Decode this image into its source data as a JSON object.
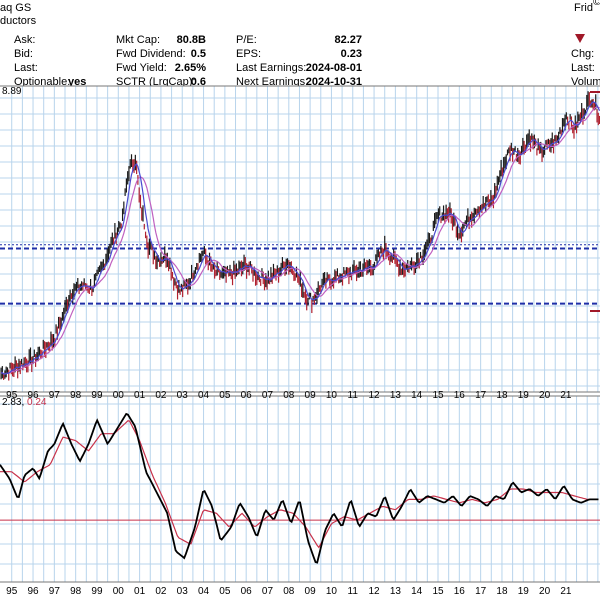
{
  "header": {
    "exchange": "aq GS",
    "industry": "ductors",
    "date_fragment": "Frid",
    "corner_fragment": "©",
    "fields": {
      "ask_label": "Ask:",
      "ask_value": "",
      "bid_label": "Bid:",
      "bid_value": "",
      "last_label": "Last:",
      "last_value": "",
      "optionable_label": "Optionable:",
      "optionable_value": "yes",
      "mktcap_label": "Mkt Cap:",
      "mktcap_value": "80.8B",
      "fwddiv_label": "Fwd Dividend:",
      "fwddiv_value": "0.5",
      "fwdyield_label": "Fwd Yield:",
      "fwdyield_value": "2.65%",
      "sctr_label": "SCTR (LrgCap):",
      "sctr_value": "0.6",
      "pe_label": "P/E:",
      "pe_value": "82.27",
      "eps_label": "EPS:",
      "eps_value": "0.23",
      "lastearn_label": "Last Earnings:",
      "lastearn_value": "2024-08-01",
      "nextearn_label": "Next Earnings:",
      "nextearn_value": "2024-10-31",
      "chg_label": "Chg:",
      "last2_label": "Last:",
      "volume_label": "Volume"
    }
  },
  "colors": {
    "grid": "#b8d4ec",
    "price": "#000000",
    "price_up": "#1a1a1a",
    "price_down": "#b0202e",
    "ma_fast": "#4a4ad0",
    "ma_slow": "#c060c0",
    "support": "#1f2fa8",
    "macd": "#000000",
    "signal": "#c8324a",
    "zero": "#c8324a",
    "triangle": "#a01828"
  },
  "chart_data": [
    {
      "type": "line",
      "panel": "price",
      "price_label_fragment": "8.89",
      "x_tick_labels": [
        "95",
        "96",
        "97",
        "98",
        "99",
        "00",
        "01",
        "02",
        "03",
        "04",
        "05",
        "06",
        "07",
        "08",
        "09",
        "10",
        "11",
        "12",
        "13",
        "14",
        "15",
        "16",
        "17",
        "18",
        "19",
        "20",
        "21"
      ],
      "x_year_start": 1994.45,
      "x_year_end": 2022.6,
      "y_log_range": [
        3.5,
        95
      ],
      "support_lines": [
        {
          "value": 16.8,
          "style": "dashed-bold"
        },
        {
          "value": 17.5,
          "style": "dotted-thin"
        },
        {
          "value": 9.2,
          "style": "dashed-bold"
        }
      ],
      "series": [
        {
          "values_by_year": [
            [
              1994.5,
              4.3
            ],
            [
              1995.0,
              4.5
            ],
            [
              1995.5,
              4.8
            ],
            [
              1996.0,
              5.0
            ],
            [
              1996.5,
              5.6
            ],
            [
              1997.0,
              6.3
            ],
            [
              1997.4,
              8.0
            ],
            [
              1997.8,
              10.5
            ],
            [
              1998.3,
              11.2
            ],
            [
              1998.8,
              11.0
            ],
            [
              1999.3,
              14.0
            ],
            [
              1999.7,
              18.0
            ],
            [
              2000.2,
              23.0
            ],
            [
              2000.5,
              40.0
            ],
            [
              2000.8,
              45.0
            ],
            [
              2001.0,
              28.0
            ],
            [
              2001.4,
              17.5
            ],
            [
              2001.8,
              15.0
            ],
            [
              2002.3,
              15.5
            ],
            [
              2002.6,
              12.0
            ],
            [
              2002.9,
              10.5
            ],
            [
              2003.3,
              11.5
            ],
            [
              2003.8,
              15.0
            ],
            [
              2004.0,
              16.0
            ],
            [
              2004.5,
              13.0
            ],
            [
              2005.0,
              12.5
            ],
            [
              2005.5,
              13.0
            ],
            [
              2006.0,
              14.0
            ],
            [
              2006.5,
              12.5
            ],
            [
              2007.0,
              12.0
            ],
            [
              2007.5,
              13.0
            ],
            [
              2007.9,
              14.5
            ],
            [
              2008.3,
              13.0
            ],
            [
              2008.8,
              10.0
            ],
            [
              2009.1,
              9.5
            ],
            [
              2009.6,
              11.5
            ],
            [
              2010.0,
              12.0
            ],
            [
              2010.5,
              12.5
            ],
            [
              2011.0,
              13.0
            ],
            [
              2011.5,
              13.5
            ],
            [
              2012.0,
              14.0
            ],
            [
              2012.5,
              17.0
            ],
            [
              2012.9,
              15.0
            ],
            [
              2013.3,
              13.5
            ],
            [
              2013.8,
              14.0
            ],
            [
              2014.2,
              15.5
            ],
            [
              2014.6,
              18.0
            ],
            [
              2015.0,
              24.0
            ],
            [
              2015.5,
              25.0
            ],
            [
              2016.0,
              20.0
            ],
            [
              2016.4,
              23.0
            ],
            [
              2016.8,
              26.0
            ],
            [
              2017.2,
              27.0
            ],
            [
              2017.6,
              29.0
            ],
            [
              2018.0,
              40.0
            ],
            [
              2018.4,
              50.0
            ],
            [
              2018.8,
              47.0
            ],
            [
              2019.3,
              57.0
            ],
            [
              2019.8,
              48.0
            ],
            [
              2020.2,
              52.0
            ],
            [
              2020.6,
              55.0
            ],
            [
              2021.0,
              72.0
            ],
            [
              2021.4,
              62.0
            ],
            [
              2021.8,
              75.0
            ],
            [
              2022.2,
              88.0
            ],
            [
              2022.6,
              70.0
            ]
          ]
        }
      ]
    },
    {
      "type": "line",
      "panel": "indicator",
      "value_labels": [
        "2.83",
        "0.24"
      ],
      "y_range": [
        -1.5,
        3.3
      ],
      "reference_line": 0,
      "series": [
        {
          "id": "macd",
          "values_by_year": [
            [
              1994.45,
              1.6
            ],
            [
              1994.9,
              1.2
            ],
            [
              1995.3,
              0.6
            ],
            [
              1995.6,
              1.3
            ],
            [
              1996.0,
              1.5
            ],
            [
              1996.3,
              1.2
            ],
            [
              1996.7,
              2.0
            ],
            [
              1997.0,
              2.2
            ],
            [
              1997.4,
              2.8
            ],
            [
              1997.8,
              2.2
            ],
            [
              1998.2,
              1.7
            ],
            [
              1998.6,
              2.2
            ],
            [
              1999.0,
              2.9
            ],
            [
              1999.5,
              2.2
            ],
            [
              1999.9,
              2.6
            ],
            [
              2000.4,
              3.1
            ],
            [
              2000.8,
              2.7
            ],
            [
              2001.3,
              1.4
            ],
            [
              2001.8,
              0.8
            ],
            [
              2002.3,
              0.2
            ],
            [
              2002.7,
              -0.9
            ],
            [
              2003.1,
              -1.1
            ],
            [
              2003.6,
              -0.2
            ],
            [
              2004.0,
              0.9
            ],
            [
              2004.4,
              0.4
            ],
            [
              2004.8,
              -0.6
            ],
            [
              2005.3,
              -0.2
            ],
            [
              2005.7,
              0.5
            ],
            [
              2006.1,
              0.1
            ],
            [
              2006.5,
              -0.5
            ],
            [
              2006.9,
              0.3
            ],
            [
              2007.3,
              0.0
            ],
            [
              2007.7,
              0.6
            ],
            [
              2008.1,
              -0.1
            ],
            [
              2008.5,
              0.6
            ],
            [
              2008.9,
              -0.6
            ],
            [
              2009.3,
              -1.3
            ],
            [
              2009.7,
              -0.3
            ],
            [
              2010.1,
              0.2
            ],
            [
              2010.5,
              -0.2
            ],
            [
              2010.9,
              0.6
            ],
            [
              2011.3,
              -0.2
            ],
            [
              2011.7,
              0.2
            ],
            [
              2012.1,
              0.1
            ],
            [
              2012.5,
              0.7
            ],
            [
              2012.9,
              0.0
            ],
            [
              2013.3,
              0.4
            ],
            [
              2013.7,
              0.9
            ],
            [
              2014.1,
              0.5
            ],
            [
              2014.5,
              0.7
            ],
            [
              2014.9,
              0.6
            ],
            [
              2015.3,
              0.5
            ],
            [
              2015.7,
              0.7
            ],
            [
              2016.1,
              0.4
            ],
            [
              2016.5,
              0.7
            ],
            [
              2016.9,
              0.6
            ],
            [
              2017.3,
              0.4
            ],
            [
              2017.7,
              0.7
            ],
            [
              2018.1,
              0.6
            ],
            [
              2018.5,
              1.1
            ],
            [
              2018.9,
              0.8
            ],
            [
              2019.3,
              0.9
            ],
            [
              2019.7,
              0.7
            ],
            [
              2020.1,
              0.9
            ],
            [
              2020.5,
              0.6
            ],
            [
              2020.9,
              1.0
            ],
            [
              2021.3,
              0.6
            ],
            [
              2021.7,
              0.5
            ],
            [
              2022.1,
              0.6
            ],
            [
              2022.6,
              0.6
            ]
          ]
        },
        {
          "id": "signal",
          "values_by_year": [
            [
              1994.45,
              1.4
            ],
            [
              1995.0,
              1.4
            ],
            [
              1995.6,
              1.1
            ],
            [
              1996.2,
              1.4
            ],
            [
              1996.8,
              1.6
            ],
            [
              1997.4,
              2.4
            ],
            [
              1998.0,
              2.3
            ],
            [
              1998.6,
              2.0
            ],
            [
              1999.2,
              2.5
            ],
            [
              1999.8,
              2.5
            ],
            [
              2000.5,
              2.9
            ],
            [
              2001.0,
              2.3
            ],
            [
              2001.6,
              1.3
            ],
            [
              2002.2,
              0.5
            ],
            [
              2002.8,
              -0.5
            ],
            [
              2003.4,
              -0.7
            ],
            [
              2004.0,
              0.3
            ],
            [
              2004.6,
              0.2
            ],
            [
              2005.2,
              -0.2
            ],
            [
              2005.8,
              0.2
            ],
            [
              2006.4,
              -0.2
            ],
            [
              2007.0,
              0.1
            ],
            [
              2007.6,
              0.3
            ],
            [
              2008.2,
              0.2
            ],
            [
              2008.8,
              -0.2
            ],
            [
              2009.4,
              -0.8
            ],
            [
              2010.0,
              -0.1
            ],
            [
              2010.6,
              0.1
            ],
            [
              2011.2,
              0.0
            ],
            [
              2011.8,
              0.2
            ],
            [
              2012.4,
              0.4
            ],
            [
              2013.0,
              0.3
            ],
            [
              2013.6,
              0.6
            ],
            [
              2014.2,
              0.6
            ],
            [
              2014.8,
              0.7
            ],
            [
              2015.4,
              0.6
            ],
            [
              2016.0,
              0.5
            ],
            [
              2016.6,
              0.6
            ],
            [
              2017.2,
              0.5
            ],
            [
              2017.8,
              0.6
            ],
            [
              2018.4,
              0.9
            ],
            [
              2019.0,
              0.9
            ],
            [
              2019.6,
              0.8
            ],
            [
              2020.2,
              0.8
            ],
            [
              2020.8,
              0.8
            ],
            [
              2021.4,
              0.7
            ],
            [
              2022.0,
              0.6
            ],
            [
              2022.6,
              0.6
            ]
          ]
        }
      ]
    }
  ]
}
